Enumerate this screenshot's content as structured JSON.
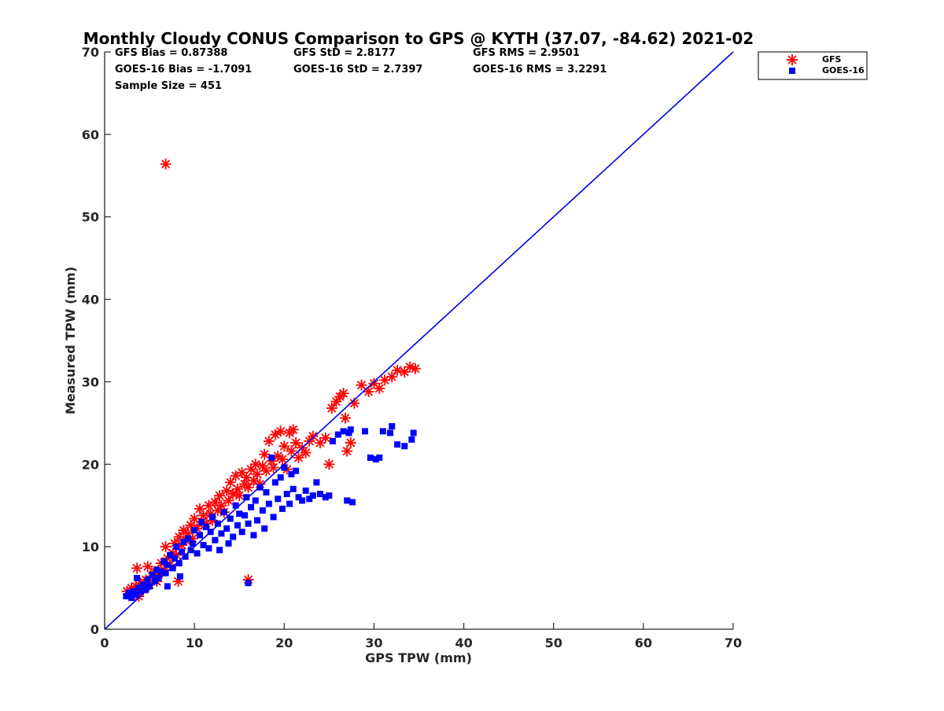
{
  "chart_data": {
    "type": "scatter",
    "title": "Monthly Cloudy CONUS Comparison to GPS @ KYTH (37.07, -84.62) 2021-02",
    "xlabel": "GPS TPW (mm)",
    "ylabel": "Measured TPW (mm)",
    "xlim": [
      0,
      70
    ],
    "ylim": [
      0,
      70
    ],
    "xticks": [
      "0",
      "10",
      "20",
      "30",
      "40",
      "50",
      "60",
      "70"
    ],
    "yticks": [
      "0",
      "10",
      "20",
      "30",
      "40",
      "50",
      "60",
      "70"
    ],
    "grid": false,
    "legend_position": "outside top-right",
    "stats": {
      "gfs_bias": "GFS Bias = 0.87388",
      "goes_bias": "GOES-16 Bias = -1.7091",
      "sample_size": "Sample Size = 451",
      "gfs_std": "GFS StD = 2.8177",
      "goes_std": "GOES-16 StD = 2.7397",
      "gfs_rms": "GFS RMS = 2.9501",
      "goes_rms": "GOES-16 RMS = 3.2291"
    },
    "reference_line": {
      "x": [
        0,
        70
      ],
      "y": [
        0,
        70
      ],
      "color": "#0000e6"
    },
    "series": [
      {
        "name": "GFS",
        "marker": "asterisk",
        "color": "#ff0000",
        "points": [
          [
            2.5,
            4.6
          ],
          [
            2.8,
            4.2
          ],
          [
            3.0,
            5.0
          ],
          [
            3.2,
            4.4
          ],
          [
            3.5,
            5.2
          ],
          [
            3.8,
            4.0
          ],
          [
            3.6,
            7.4
          ],
          [
            4.0,
            5.6
          ],
          [
            4.3,
            4.8
          ],
          [
            4.6,
            6.0
          ],
          [
            4.8,
            7.6
          ],
          [
            5.0,
            5.4
          ],
          [
            5.3,
            6.4
          ],
          [
            5.6,
            7.0
          ],
          [
            5.8,
            5.8
          ],
          [
            6.0,
            6.6
          ],
          [
            6.3,
            8.0
          ],
          [
            6.6,
            7.2
          ],
          [
            6.8,
            10.0
          ],
          [
            7.0,
            8.6
          ],
          [
            7.3,
            7.8
          ],
          [
            7.6,
            9.2
          ],
          [
            7.8,
            10.4
          ],
          [
            8.0,
            9.0
          ],
          [
            8.3,
            11.2
          ],
          [
            8.6,
            10.2
          ],
          [
            8.8,
            12.0
          ],
          [
            9.0,
            10.8
          ],
          [
            9.3,
            11.6
          ],
          [
            9.6,
            12.6
          ],
          [
            9.8,
            11.0
          ],
          [
            10.0,
            13.4
          ],
          [
            10.3,
            12.2
          ],
          [
            10.6,
            14.6
          ],
          [
            10.8,
            13.0
          ],
          [
            11.0,
            13.8
          ],
          [
            11.3,
            12.8
          ],
          [
            11.6,
            15.0
          ],
          [
            11.8,
            14.0
          ],
          [
            12.0,
            13.2
          ],
          [
            12.3,
            15.4
          ],
          [
            12.6,
            14.4
          ],
          [
            12.8,
            16.2
          ],
          [
            13.0,
            15.0
          ],
          [
            13.3,
            14.2
          ],
          [
            13.6,
            16.8
          ],
          [
            13.8,
            15.6
          ],
          [
            14.0,
            17.8
          ],
          [
            14.3,
            16.4
          ],
          [
            14.6,
            18.6
          ],
          [
            14.8,
            17.0
          ],
          [
            15.0,
            16.2
          ],
          [
            15.3,
            19.0
          ],
          [
            15.6,
            17.6
          ],
          [
            15.8,
            18.4
          ],
          [
            16.0,
            17.2
          ],
          [
            16.3,
            19.4
          ],
          [
            16.6,
            18.0
          ],
          [
            16.8,
            20.0
          ],
          [
            17.0,
            18.8
          ],
          [
            17.3,
            17.6
          ],
          [
            17.6,
            19.8
          ],
          [
            17.8,
            21.2
          ],
          [
            18.0,
            19.2
          ],
          [
            18.3,
            22.8
          ],
          [
            18.6,
            20.4
          ],
          [
            18.8,
            19.6
          ],
          [
            19.0,
            23.6
          ],
          [
            19.3,
            21.0
          ],
          [
            19.6,
            24.0
          ],
          [
            19.8,
            20.6
          ],
          [
            20.0,
            22.2
          ],
          [
            20.3,
            19.4
          ],
          [
            20.6,
            23.8
          ],
          [
            20.8,
            21.6
          ],
          [
            21.0,
            24.2
          ],
          [
            21.3,
            22.6
          ],
          [
            21.6,
            20.8
          ],
          [
            22.0,
            22.0
          ],
          [
            22.4,
            21.4
          ],
          [
            22.8,
            22.8
          ],
          [
            23.2,
            23.4
          ],
          [
            24.0,
            22.6
          ],
          [
            24.6,
            23.2
          ],
          [
            25.0,
            20.0
          ],
          [
            25.3,
            26.8
          ],
          [
            25.8,
            27.6
          ],
          [
            26.2,
            28.2
          ],
          [
            26.6,
            28.6
          ],
          [
            26.8,
            25.6
          ],
          [
            27.0,
            21.6
          ],
          [
            27.4,
            22.6
          ],
          [
            27.8,
            27.4
          ],
          [
            28.6,
            29.6
          ],
          [
            29.4,
            28.8
          ],
          [
            30.0,
            29.8
          ],
          [
            30.6,
            29.2
          ],
          [
            31.2,
            30.2
          ],
          [
            32.0,
            30.6
          ],
          [
            32.6,
            31.4
          ],
          [
            33.4,
            31.2
          ],
          [
            34.0,
            31.8
          ],
          [
            34.6,
            31.6
          ],
          [
            6.8,
            56.4
          ],
          [
            16.0,
            6.0
          ],
          [
            8.2,
            5.8
          ]
        ]
      },
      {
        "name": "GOES-16",
        "marker": "square",
        "color": "#0000ff",
        "points": [
          [
            2.4,
            4.0
          ],
          [
            2.7,
            4.4
          ],
          [
            3.0,
            3.8
          ],
          [
            3.2,
            4.6
          ],
          [
            3.5,
            4.2
          ],
          [
            3.8,
            5.0
          ],
          [
            3.6,
            6.2
          ],
          [
            4.0,
            4.6
          ],
          [
            4.3,
            5.4
          ],
          [
            4.6,
            4.8
          ],
          [
            4.8,
            6.0
          ],
          [
            5.0,
            5.2
          ],
          [
            5.3,
            6.6
          ],
          [
            5.6,
            5.8
          ],
          [
            5.8,
            7.2
          ],
          [
            6.0,
            6.2
          ],
          [
            6.3,
            7.0
          ],
          [
            6.6,
            8.2
          ],
          [
            6.8,
            6.8
          ],
          [
            7.0,
            7.8
          ],
          [
            7.3,
            9.0
          ],
          [
            7.6,
            7.4
          ],
          [
            7.8,
            8.6
          ],
          [
            8.0,
            10.0
          ],
          [
            8.3,
            8.0
          ],
          [
            8.6,
            9.4
          ],
          [
            8.8,
            10.6
          ],
          [
            9.0,
            8.8
          ],
          [
            9.3,
            11.0
          ],
          [
            9.6,
            9.6
          ],
          [
            9.8,
            10.4
          ],
          [
            10.0,
            12.0
          ],
          [
            10.3,
            9.2
          ],
          [
            10.6,
            11.4
          ],
          [
            10.8,
            13.0
          ],
          [
            11.0,
            10.2
          ],
          [
            11.3,
            12.4
          ],
          [
            11.6,
            9.8
          ],
          [
            11.8,
            11.8
          ],
          [
            12.0,
            13.6
          ],
          [
            12.3,
            10.8
          ],
          [
            12.6,
            12.8
          ],
          [
            12.8,
            9.6
          ],
          [
            13.0,
            11.6
          ],
          [
            13.3,
            14.2
          ],
          [
            13.6,
            12.2
          ],
          [
            13.8,
            10.4
          ],
          [
            14.0,
            13.4
          ],
          [
            14.3,
            11.2
          ],
          [
            14.6,
            15.0
          ],
          [
            14.8,
            12.6
          ],
          [
            15.0,
            14.0
          ],
          [
            15.3,
            11.8
          ],
          [
            15.6,
            13.8
          ],
          [
            15.8,
            16.0
          ],
          [
            16.0,
            12.8
          ],
          [
            16.3,
            14.8
          ],
          [
            16.6,
            11.4
          ],
          [
            16.8,
            15.6
          ],
          [
            17.0,
            13.2
          ],
          [
            17.3,
            17.2
          ],
          [
            17.6,
            14.4
          ],
          [
            17.8,
            12.2
          ],
          [
            18.0,
            16.6
          ],
          [
            18.3,
            15.2
          ],
          [
            18.6,
            20.8
          ],
          [
            18.8,
            13.6
          ],
          [
            19.0,
            17.8
          ],
          [
            19.3,
            15.8
          ],
          [
            19.6,
            18.4
          ],
          [
            19.8,
            14.6
          ],
          [
            20.0,
            19.6
          ],
          [
            20.3,
            16.4
          ],
          [
            20.6,
            15.2
          ],
          [
            20.8,
            18.8
          ],
          [
            21.0,
            17.0
          ],
          [
            21.3,
            19.2
          ],
          [
            21.6,
            16.0
          ],
          [
            22.0,
            15.6
          ],
          [
            22.4,
            16.8
          ],
          [
            22.8,
            15.8
          ],
          [
            23.2,
            16.2
          ],
          [
            23.6,
            17.8
          ],
          [
            24.0,
            16.4
          ],
          [
            24.6,
            16.0
          ],
          [
            25.0,
            16.2
          ],
          [
            25.4,
            22.8
          ],
          [
            26.0,
            23.6
          ],
          [
            26.6,
            24.0
          ],
          [
            27.0,
            15.6
          ],
          [
            27.6,
            15.4
          ],
          [
            27.2,
            23.8
          ],
          [
            27.4,
            24.2
          ],
          [
            29.0,
            24.0
          ],
          [
            29.6,
            20.8
          ],
          [
            30.2,
            20.6
          ],
          [
            30.6,
            20.8
          ],
          [
            31.0,
            24.0
          ],
          [
            31.8,
            23.8
          ],
          [
            32.0,
            24.6
          ],
          [
            32.6,
            22.4
          ],
          [
            33.4,
            22.2
          ],
          [
            34.2,
            23.0
          ],
          [
            34.4,
            23.8
          ],
          [
            16.0,
            5.6
          ],
          [
            8.4,
            6.4
          ],
          [
            7.0,
            5.2
          ]
        ]
      }
    ]
  }
}
